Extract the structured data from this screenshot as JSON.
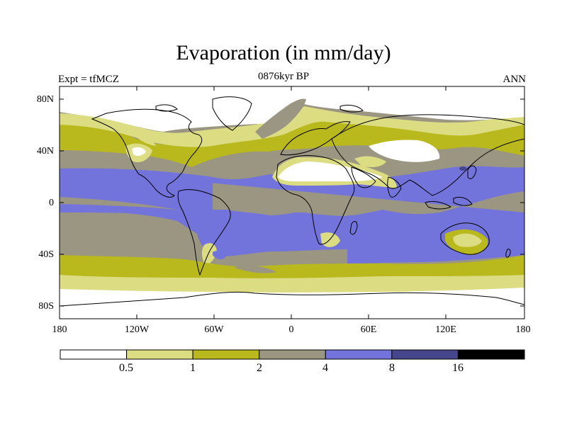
{
  "title": "Evaporation (in mm/day)",
  "experiment": "Expt = tfMCZ",
  "period": "0876kyr BP",
  "season": "ANN",
  "lat_labels": [
    "80N",
    "40N",
    "0",
    "40S",
    "80S"
  ],
  "lon_labels": [
    "180",
    "120W",
    "60W",
    "0",
    "60E",
    "120E",
    "180"
  ],
  "colorbar": {
    "bins": [
      {
        "name": "lt-0.5",
        "color": "#ffffff"
      },
      {
        "name": "0.5-1",
        "color": "#dcdc82"
      },
      {
        "name": "1-2",
        "color": "#b9b91e"
      },
      {
        "name": "2-4",
        "color": "#9b9682"
      },
      {
        "name": "4-8",
        "color": "#7373dc"
      },
      {
        "name": "8-16",
        "color": "#46468c"
      },
      {
        "name": "gt-16",
        "color": "#000000"
      }
    ],
    "tick_labels": [
      "0.5",
      "1",
      "2",
      "4",
      "8",
      "16"
    ]
  }
}
